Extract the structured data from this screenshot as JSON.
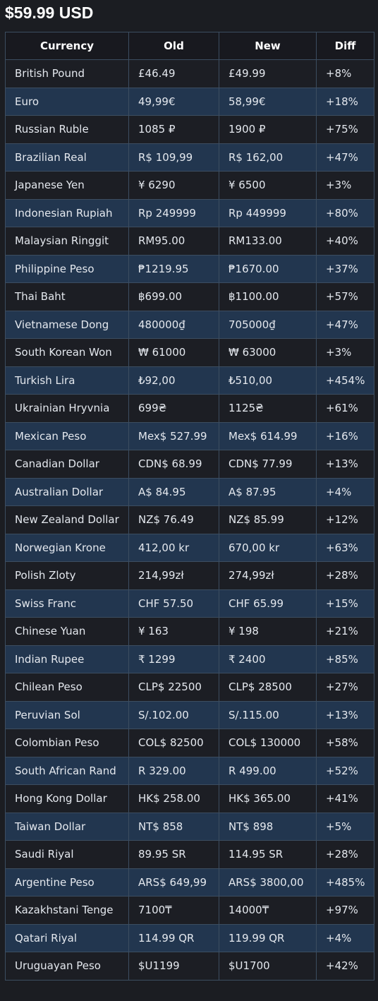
{
  "header": {
    "price": "$59.99 USD"
  },
  "table": {
    "columns": [
      "Currency",
      "Old",
      "New",
      "Diff"
    ],
    "rows": [
      {
        "currency": "British Pound",
        "old": "£46.49",
        "new": "£49.99",
        "diff": "+8%"
      },
      {
        "currency": "Euro",
        "old": "49,99€",
        "new": "58,99€",
        "diff": "+18%"
      },
      {
        "currency": "Russian Ruble",
        "old": "1085 ₽",
        "new": "1900 ₽",
        "diff": "+75%"
      },
      {
        "currency": "Brazilian Real",
        "old": "R$ 109,99",
        "new": "R$ 162,00",
        "diff": "+47%"
      },
      {
        "currency": "Japanese Yen",
        "old": "¥ 6290",
        "new": "¥ 6500",
        "diff": "+3%"
      },
      {
        "currency": "Indonesian Rupiah",
        "old": "Rp 249999",
        "new": "Rp 449999",
        "diff": "+80%"
      },
      {
        "currency": "Malaysian Ringgit",
        "old": "RM95.00",
        "new": "RM133.00",
        "diff": "+40%"
      },
      {
        "currency": "Philippine Peso",
        "old": "₱1219.95",
        "new": "₱1670.00",
        "diff": "+37%"
      },
      {
        "currency": "Thai Baht",
        "old": "฿699.00",
        "new": "฿1100.00",
        "diff": "+57%"
      },
      {
        "currency": "Vietnamese Dong",
        "old": "480000₫",
        "new": "705000₫",
        "diff": "+47%"
      },
      {
        "currency": "South Korean Won",
        "old": "₩ 61000",
        "new": "₩ 63000",
        "diff": "+3%"
      },
      {
        "currency": "Turkish Lira",
        "old": "₺92,00",
        "new": "₺510,00",
        "diff": "+454%"
      },
      {
        "currency": "Ukrainian Hryvnia",
        "old": "699₴",
        "new": "1125₴",
        "diff": "+61%"
      },
      {
        "currency": "Mexican Peso",
        "old": "Mex$ 527.99",
        "new": "Mex$ 614.99",
        "diff": "+16%"
      },
      {
        "currency": "Canadian Dollar",
        "old": "CDN$ 68.99",
        "new": "CDN$ 77.99",
        "diff": "+13%"
      },
      {
        "currency": "Australian Dollar",
        "old": "A$ 84.95",
        "new": "A$ 87.95",
        "diff": "+4%"
      },
      {
        "currency": "New Zealand Dollar",
        "old": "NZ$ 76.49",
        "new": "NZ$ 85.99",
        "diff": "+12%"
      },
      {
        "currency": "Norwegian Krone",
        "old": "412,00 kr",
        "new": "670,00 kr",
        "diff": "+63%"
      },
      {
        "currency": "Polish Zloty",
        "old": "214,99zł",
        "new": "274,99zł",
        "diff": "+28%"
      },
      {
        "currency": "Swiss Franc",
        "old": "CHF 57.50",
        "new": "CHF 65.99",
        "diff": "+15%"
      },
      {
        "currency": "Chinese Yuan",
        "old": "¥ 163",
        "new": "¥ 198",
        "diff": "+21%"
      },
      {
        "currency": "Indian Rupee",
        "old": "₹ 1299",
        "new": "₹ 2400",
        "diff": "+85%"
      },
      {
        "currency": "Chilean Peso",
        "old": "CLP$ 22500",
        "new": "CLP$ 28500",
        "diff": "+27%"
      },
      {
        "currency": "Peruvian Sol",
        "old": "S/.102.00",
        "new": "S/.115.00",
        "diff": "+13%"
      },
      {
        "currency": "Colombian Peso",
        "old": "COL$ 82500",
        "new": "COL$ 130000",
        "diff": "+58%"
      },
      {
        "currency": "South African Rand",
        "old": "R 329.00",
        "new": "R 499.00",
        "diff": "+52%"
      },
      {
        "currency": "Hong Kong Dollar",
        "old": "HK$ 258.00",
        "new": "HK$ 365.00",
        "diff": "+41%"
      },
      {
        "currency": "Taiwan Dollar",
        "old": "NT$ 858",
        "new": "NT$ 898",
        "diff": "+5%"
      },
      {
        "currency": "Saudi Riyal",
        "old": "89.95 SR",
        "new": "114.95 SR",
        "diff": "+28%"
      },
      {
        "currency": "Argentine Peso",
        "old": "ARS$ 649,99",
        "new": "ARS$ 3800,00",
        "diff": "+485%"
      },
      {
        "currency": "Kazakhstani Tenge",
        "old": "7100₸",
        "new": "14000₸",
        "diff": "+97%"
      },
      {
        "currency": "Qatari Riyal",
        "old": "114.99 QR",
        "new": "119.99 QR",
        "diff": "+4%"
      },
      {
        "currency": "Uruguayan Peso",
        "old": "$U1199",
        "new": "$U1700",
        "diff": "+42%"
      }
    ]
  }
}
